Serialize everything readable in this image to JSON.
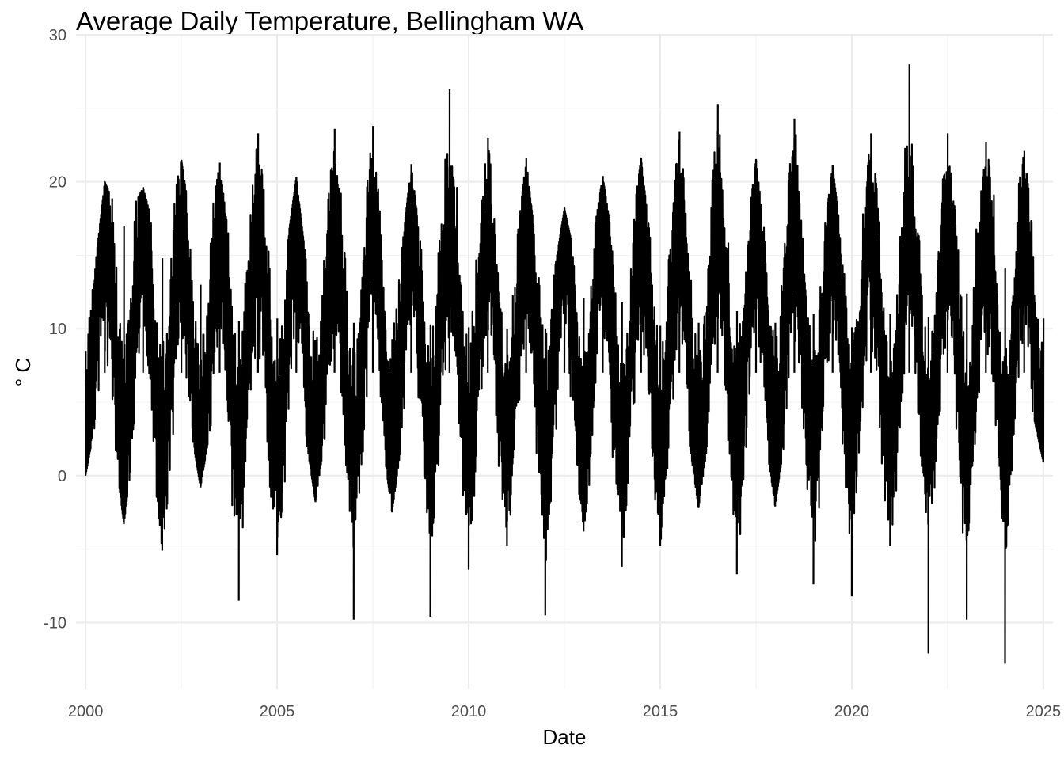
{
  "chart_data": {
    "type": "line",
    "title": "Average Daily Temperature, Bellingham WA",
    "xlabel": "Date",
    "ylabel": "° C",
    "xlim": [
      1999.75,
      2025.25
    ],
    "ylim": [
      -14.5,
      30
    ],
    "x_ticks": [
      2000,
      2005,
      2010,
      2015,
      2020,
      2025
    ],
    "x_tick_labels": [
      "2000",
      "2005",
      "2010",
      "2015",
      "2020",
      "2025"
    ],
    "y_ticks": [
      -10,
      0,
      10,
      20,
      30
    ],
    "y_tick_labels": [
      "-10",
      "0",
      "10",
      "20",
      "30"
    ],
    "grid": true,
    "legend": "none",
    "colors": {
      "line": "#000000",
      "grid_major": "#ebebeb",
      "grid_minor": "#f2f2f2"
    },
    "series": [
      {
        "x": [
          2000.0,
          2000.5,
          2001.0,
          2001.5,
          2002.0,
          2002.5,
          2003.0,
          2003.5,
          2004.0,
          2004.5,
          2005.0,
          2005.5,
          2006.0,
          2006.5,
          2007.0,
          2007.5,
          2008.0,
          2008.5,
          2009.0,
          2009.5,
          2010.0,
          2010.5,
          2011.0,
          2011.5,
          2012.0,
          2012.5,
          2013.0,
          2013.5,
          2014.0,
          2014.5,
          2015.0,
          2015.5,
          2016.0,
          2016.5,
          2017.0,
          2017.5,
          2018.0,
          2018.5,
          2019.0,
          2019.5,
          2020.0,
          2020.5,
          2021.0,
          2021.5,
          2022.0,
          2022.5,
          2023.0,
          2023.5,
          2024.0,
          2024.5,
          2025.0
        ],
        "min": [
          0,
          7,
          -3.3,
          7,
          -5.1,
          7,
          -0.8,
          7,
          -8.5,
          7,
          -5.4,
          7,
          -1.8,
          7,
          -9.8,
          7,
          -2.5,
          7,
          -9.6,
          7,
          -6.4,
          7,
          -4.8,
          7,
          -9.5,
          7,
          -3.8,
          7,
          -6.2,
          7,
          -4.8,
          7,
          -2.2,
          7,
          -6.7,
          7,
          -2.1,
          7,
          -7.4,
          7,
          -8.2,
          7,
          -4.8,
          7,
          -12.1,
          7,
          -9.8,
          7,
          -12.8,
          7,
          0.9
        ],
        "max": [
          8.5,
          20,
          17,
          19.6,
          14.8,
          21.5,
          13,
          21.3,
          10.5,
          23.3,
          10.7,
          20.3,
          9.2,
          23.6,
          10.4,
          23.8,
          9.3,
          21.2,
          10.3,
          26.3,
          10.1,
          23,
          10,
          21.6,
          10,
          18.2,
          12.1,
          20.4,
          11.8,
          21.6,
          10.2,
          23.4,
          10.4,
          25.3,
          11.2,
          21.5,
          10.4,
          24.3,
          11,
          21.1,
          10.1,
          23.3,
          11,
          28,
          10.8,
          23.3,
          12.4,
          22.7,
          14.1,
          22.1,
          10.7
        ]
      }
    ]
  }
}
